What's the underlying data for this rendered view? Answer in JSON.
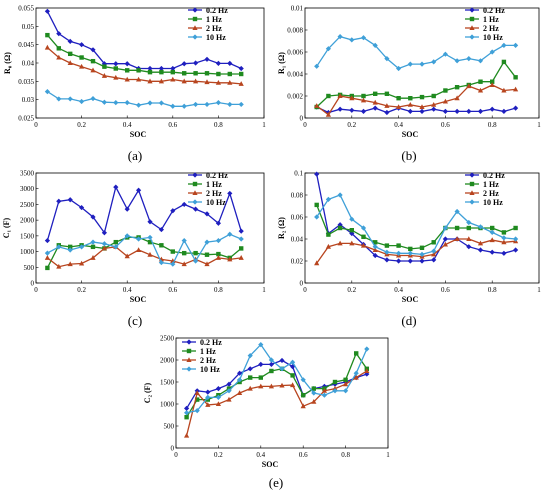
{
  "figure": {
    "panels": [
      {
        "caption": "(a)"
      },
      {
        "caption": "(b)"
      },
      {
        "caption": "(c)"
      },
      {
        "caption": "(d)"
      },
      {
        "caption": "(e)"
      }
    ]
  },
  "chart_data": [
    {
      "type": "line",
      "xlabel": "SOC",
      "ylabel": "R₀ (Ω)",
      "xlim": [
        0,
        1
      ],
      "ylim": [
        0.025,
        0.055
      ],
      "xticks": [
        "0",
        "0.2",
        "0.4",
        "0.6",
        "0.8",
        "1"
      ],
      "yticks": [
        "0.025",
        "0.03",
        "0.035",
        "0.04",
        "0.045",
        "0.05",
        "0.055"
      ],
      "xtick_values": [
        0,
        0.2,
        0.4,
        0.6,
        0.8,
        1
      ],
      "ytick_values": [
        0.025,
        0.03,
        0.035,
        0.04,
        0.045,
        0.05,
        0.055
      ],
      "legend": "top-right",
      "grid": false,
      "x": [
        0.05,
        0.1,
        0.15,
        0.2,
        0.25,
        0.3,
        0.35,
        0.4,
        0.45,
        0.5,
        0.55,
        0.6,
        0.65,
        0.7,
        0.75,
        0.8,
        0.85,
        0.9
      ],
      "series": [
        {
          "name": "0.2 Hz",
          "color": "#1f1fbf",
          "values": [
            0.0541,
            0.048,
            0.0459,
            0.045,
            0.0436,
            0.0398,
            0.0398,
            0.0398,
            0.0385,
            0.0385,
            0.0385,
            0.0385,
            0.0398,
            0.04,
            0.041,
            0.0399,
            0.0399,
            0.0385
          ]
        },
        {
          "name": "1 Hz",
          "color": "#1f8a1f",
          "values": [
            0.0476,
            0.044,
            0.0425,
            0.0415,
            0.0405,
            0.039,
            0.0385,
            0.038,
            0.038,
            0.0375,
            0.0375,
            0.0375,
            0.0372,
            0.0372,
            0.0372,
            0.037,
            0.037,
            0.037
          ]
        },
        {
          "name": "2 Hz",
          "color": "#b8451f",
          "values": [
            0.0442,
            0.0415,
            0.04,
            0.039,
            0.038,
            0.0365,
            0.036,
            0.0355,
            0.0355,
            0.035,
            0.035,
            0.0355,
            0.035,
            0.035,
            0.0348,
            0.0346,
            0.0346,
            0.0343
          ]
        },
        {
          "name": "10 Hz",
          "color": "#3fa0d8",
          "values": [
            0.0322,
            0.0302,
            0.0302,
            0.0295,
            0.0303,
            0.0293,
            0.0292,
            0.0292,
            0.0285,
            0.0291,
            0.0291,
            0.0282,
            0.0282,
            0.0287,
            0.0287,
            0.0292,
            0.0287,
            0.0287
          ]
        }
      ]
    },
    {
      "type": "line",
      "xlabel": "SOC",
      "ylabel": "R₁ (Ω)",
      "xlim": [
        0,
        1
      ],
      "ylim": [
        0,
        0.01
      ],
      "xticks": [
        "0",
        "0.2",
        "0.4",
        "0.6",
        "0.8",
        "1"
      ],
      "yticks": [
        "0",
        "0.002",
        "0.004",
        "0.006",
        "0.008",
        "0.01"
      ],
      "xtick_values": [
        0,
        0.2,
        0.4,
        0.6,
        0.8,
        1
      ],
      "ytick_values": [
        0,
        0.002,
        0.004,
        0.006,
        0.008,
        0.01
      ],
      "legend": "top-right",
      "grid": false,
      "x": [
        0.05,
        0.1,
        0.15,
        0.2,
        0.25,
        0.3,
        0.35,
        0.4,
        0.45,
        0.5,
        0.55,
        0.6,
        0.65,
        0.7,
        0.75,
        0.8,
        0.85,
        0.9
      ],
      "series": [
        {
          "name": "0.2 Hz",
          "color": "#1f1fbf",
          "values": [
            0.001,
            0.0005,
            0.0008,
            0.0007,
            0.0006,
            0.0009,
            0.0005,
            0.0009,
            0.0006,
            0.0006,
            0.0008,
            0.0006,
            0.0006,
            0.0006,
            0.0006,
            0.0008,
            0.0006,
            0.0009
          ]
        },
        {
          "name": "1 Hz",
          "color": "#1f8a1f",
          "values": [
            0.001,
            0.002,
            0.0021,
            0.002,
            0.002,
            0.0022,
            0.0022,
            0.0018,
            0.0018,
            0.0019,
            0.002,
            0.0025,
            0.0028,
            0.003,
            0.0033,
            0.0033,
            0.0051,
            0.0037
          ]
        },
        {
          "name": "2 Hz",
          "color": "#b8451f",
          "values": [
            0.0011,
            0.0003,
            0.002,
            0.0018,
            0.0016,
            0.0014,
            0.0011,
            0.001,
            0.0012,
            0.001,
            0.0012,
            0.0015,
            0.0018,
            0.0029,
            0.0025,
            0.003,
            0.0025,
            0.0026
          ]
        },
        {
          "name": "10 Hz",
          "color": "#3fa0d8",
          "values": [
            0.0047,
            0.0063,
            0.0074,
            0.0071,
            0.0073,
            0.0066,
            0.0054,
            0.0045,
            0.0049,
            0.0049,
            0.0051,
            0.0058,
            0.0052,
            0.0054,
            0.0052,
            0.006,
            0.0066,
            0.0066
          ]
        }
      ]
    },
    {
      "type": "line",
      "xlabel": "SOC",
      "ylabel": "C₁ (F)",
      "xlim": [
        0,
        1
      ],
      "ylim": [
        0,
        3500
      ],
      "xticks": [
        "0",
        "0.2",
        "0.4",
        "0.6",
        "0.8",
        "1"
      ],
      "yticks": [
        "0",
        "500",
        "1000",
        "1500",
        "2000",
        "2500",
        "3000",
        "3500"
      ],
      "xtick_values": [
        0,
        0.2,
        0.4,
        0.6,
        0.8,
        1
      ],
      "ytick_values": [
        0,
        500,
        1000,
        1500,
        2000,
        2500,
        3000,
        3500
      ],
      "legend": "top-right",
      "grid": false,
      "x": [
        0.05,
        0.1,
        0.15,
        0.2,
        0.25,
        0.3,
        0.35,
        0.4,
        0.45,
        0.5,
        0.55,
        0.6,
        0.65,
        0.7,
        0.75,
        0.8,
        0.85,
        0.9
      ],
      "series": [
        {
          "name": "0.2 Hz",
          "color": "#1f1fbf",
          "values": [
            1350,
            2600,
            2650,
            2400,
            2100,
            1600,
            3050,
            2350,
            2950,
            1950,
            1700,
            2300,
            2500,
            2350,
            2200,
            1900,
            2850,
            1650
          ]
        },
        {
          "name": "1 Hz",
          "color": "#1f8a1f",
          "values": [
            480,
            1200,
            1150,
            1200,
            1150,
            1100,
            1300,
            1450,
            1450,
            1300,
            1200,
            1000,
            950,
            950,
            900,
            920,
            800,
            1100
          ]
        },
        {
          "name": "2 Hz",
          "color": "#b8451f",
          "values": [
            800,
            520,
            600,
            620,
            800,
            1100,
            1150,
            850,
            1050,
            900,
            750,
            700,
            600,
            750,
            600,
            800,
            750,
            800
          ]
        },
        {
          "name": "10 Hz",
          "color": "#3fa0d8",
          "values": [
            950,
            1150,
            1050,
            1150,
            1300,
            1250,
            1150,
            1500,
            1400,
            1450,
            650,
            600,
            1350,
            700,
            1300,
            1350,
            1550,
            1400
          ]
        }
      ]
    },
    {
      "type": "line",
      "xlabel": "SOC",
      "ylabel": "R₂ (Ω)",
      "xlim": [
        0,
        1
      ],
      "ylim": [
        0,
        0.1
      ],
      "xticks": [
        "0",
        "0.2",
        "0.4",
        "0.6",
        "0.8",
        "1"
      ],
      "yticks": [
        "0",
        "0.02",
        "0.04",
        "0.06",
        "0.08",
        "0.1"
      ],
      "xtick_values": [
        0,
        0.2,
        0.4,
        0.6,
        0.8,
        1
      ],
      "ytick_values": [
        0,
        0.02,
        0.04,
        0.06,
        0.08,
        0.1
      ],
      "legend": "top-right",
      "grid": false,
      "x": [
        0.05,
        0.1,
        0.15,
        0.2,
        0.25,
        0.3,
        0.35,
        0.4,
        0.45,
        0.5,
        0.55,
        0.6,
        0.65,
        0.7,
        0.75,
        0.8,
        0.85,
        0.9
      ],
      "series": [
        {
          "name": "0.2 Hz",
          "color": "#1f1fbf",
          "values": [
            0.099,
            0.045,
            0.053,
            0.045,
            0.035,
            0.025,
            0.021,
            0.02,
            0.02,
            0.02,
            0.021,
            0.04,
            0.04,
            0.033,
            0.03,
            0.028,
            0.027,
            0.03
          ]
        },
        {
          "name": "1 Hz",
          "color": "#1f8a1f",
          "values": [
            0.071,
            0.044,
            0.05,
            0.048,
            0.042,
            0.037,
            0.034,
            0.034,
            0.031,
            0.032,
            0.037,
            0.05,
            0.05,
            0.05,
            0.05,
            0.05,
            0.046,
            0.05
          ]
        },
        {
          "name": "2 Hz",
          "color": "#b8451f",
          "values": [
            0.018,
            0.033,
            0.036,
            0.036,
            0.034,
            0.03,
            0.026,
            0.025,
            0.025,
            0.024,
            0.026,
            0.035,
            0.04,
            0.04,
            0.036,
            0.039,
            0.037,
            0.038
          ]
        },
        {
          "name": "10 Hz",
          "color": "#3fa0d8",
          "values": [
            0.06,
            0.076,
            0.08,
            0.058,
            0.05,
            0.033,
            0.028,
            0.027,
            0.027,
            0.026,
            0.029,
            0.05,
            0.065,
            0.055,
            0.051,
            0.046,
            0.041,
            0.04
          ]
        }
      ]
    },
    {
      "type": "line",
      "xlabel": "SOC",
      "ylabel": "C₂ (F)",
      "xlim": [
        0,
        1
      ],
      "ylim": [
        0,
        2500
      ],
      "xticks": [
        "0",
        "0.2",
        "0.4",
        "0.6",
        "0.8",
        "1"
      ],
      "yticks": [
        "0",
        "500",
        "1000",
        "1500",
        "2000",
        "2500"
      ],
      "xtick_values": [
        0,
        0.2,
        0.4,
        0.6,
        0.8,
        1
      ],
      "ytick_values": [
        0,
        500,
        1000,
        1500,
        2000,
        2500
      ],
      "legend": "top-left",
      "grid": false,
      "x": [
        0.05,
        0.1,
        0.15,
        0.2,
        0.25,
        0.3,
        0.35,
        0.4,
        0.45,
        0.5,
        0.55,
        0.6,
        0.65,
        0.7,
        0.75,
        0.8,
        0.85,
        0.9
      ],
      "series": [
        {
          "name": "0.2 Hz",
          "color": "#1f1fbf",
          "values": [
            900,
            1300,
            1270,
            1350,
            1450,
            1700,
            1800,
            1900,
            1900,
            1990,
            1850,
            1200,
            1350,
            1400,
            1450,
            1500,
            1600,
            1680
          ]
        },
        {
          "name": "1 Hz",
          "color": "#1f8a1f",
          "values": [
            700,
            1100,
            1100,
            1200,
            1350,
            1500,
            1600,
            1600,
            1750,
            1800,
            1650,
            1200,
            1350,
            1350,
            1500,
            1550,
            2150,
            1800
          ]
        },
        {
          "name": "2 Hz",
          "color": "#b8451f",
          "values": [
            280,
            1250,
            980,
            1000,
            1100,
            1250,
            1350,
            1400,
            1400,
            1420,
            1430,
            950,
            1050,
            1300,
            1350,
            1450,
            1600,
            1750
          ]
        },
        {
          "name": "10 Hz",
          "color": "#3fa0d8",
          "values": [
            800,
            850,
            1150,
            1150,
            1300,
            1550,
            2100,
            2350,
            2000,
            1800,
            1950,
            1550,
            1250,
            1200,
            1300,
            1300,
            1700,
            2250
          ]
        }
      ]
    }
  ]
}
